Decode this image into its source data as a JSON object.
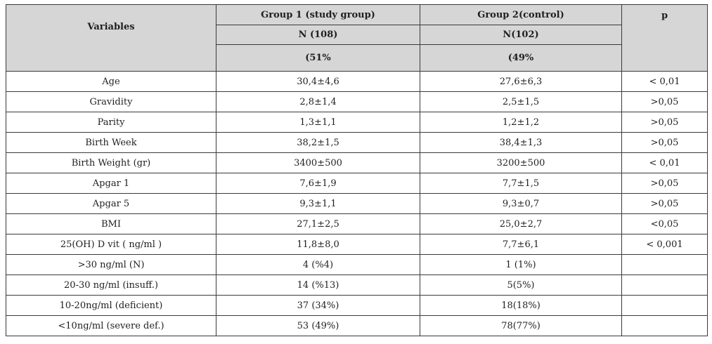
{
  "table": {
    "headers": {
      "variables": "Variables",
      "group1": "Group 1 (study group)",
      "group2": "Group 2(control)",
      "p": "p",
      "group1_n": "N (108)",
      "group2_n": "N(102)",
      "group1_pct": "(51%",
      "group2_pct": "(49%"
    },
    "rows": [
      {
        "variable": "Age",
        "group1": "30,4±4,6",
        "group2": "27,6±6,3",
        "p": "< 0,01"
      },
      {
        "variable": "Gravidity",
        "group1": "2,8±1,4",
        "group2": "2,5±1,5",
        "p": ">0,05"
      },
      {
        "variable": "Parity",
        "group1": "1,3±1,1",
        "group2": "1,2±1,2",
        "p": ">0,05"
      },
      {
        "variable": "Birth Week",
        "group1": "38,2±1,5",
        "group2": "38,4±1,3",
        "p": ">0,05"
      },
      {
        "variable": "Birth Weight (gr)",
        "group1": "3400±500",
        "group2": "3200±500",
        "p": "< 0,01"
      },
      {
        "variable": "Apgar 1",
        "group1": "7,6±1,9",
        "group2": "7,7±1,5",
        "p": ">0,05"
      },
      {
        "variable": "Apgar 5",
        "group1": "9,3±1,1",
        "group2": "9,3±0,7",
        "p": ">0,05"
      },
      {
        "variable": "BMI",
        "group1": "27,1±2,5",
        "group2": "25,0±2,7",
        "p": "<0,05"
      },
      {
        "variable": "25(OH) D vit ( ng/ml )",
        "group1": "11,8±8,0",
        "group2": "7,7±6,1",
        "p": "< 0,001"
      },
      {
        "variable": ">30 ng/ml  (N)",
        "group1": "4  (%4)",
        "group2": "1 (1%)",
        "p": ""
      },
      {
        "variable": "20-30 ng/ml (insuff.)",
        "group1": "14  (%13)",
        "group2": "5(5%)",
        "p": ""
      },
      {
        "variable": "10-20ng/ml  (deficient)",
        "group1": "37  (34%)",
        "group2": "18(18%)",
        "p": ""
      },
      {
        "variable": "<10ng/ml (severe def.)",
        "group1": "53  (49%)",
        "group2": "78(77%)",
        "p": ""
      }
    ]
  },
  "colors": {
    "header_bg": "#d6d6d6",
    "border": "#3a3a3a"
  }
}
